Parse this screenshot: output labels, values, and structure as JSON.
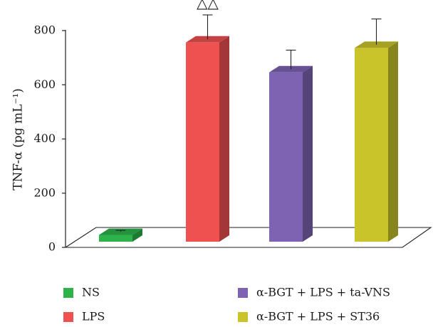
{
  "chart_data": {
    "type": "bar",
    "title": "",
    "ylabel": "TNF-α (pg mL⁻¹)",
    "xlabel": "",
    "ylim": [
      0,
      800
    ],
    "yticks": [
      0,
      200,
      400,
      600,
      800
    ],
    "grid": false,
    "legend": "bottom",
    "series": [
      {
        "name": "NS",
        "value": 25,
        "error": 5,
        "color": "#2db34a",
        "annotation": ""
      },
      {
        "name": "LPS",
        "value": 735,
        "error": 90,
        "color": "#ef5050",
        "annotation": "△△"
      },
      {
        "name": "α-BGT + LPS + ta-VNS",
        "value": 625,
        "error": 70,
        "color": "#7e63b3",
        "annotation": ""
      },
      {
        "name": "α-BGT + LPS + ST36",
        "value": 715,
        "error": 95,
        "color": "#c9c42a",
        "annotation": ""
      }
    ]
  }
}
